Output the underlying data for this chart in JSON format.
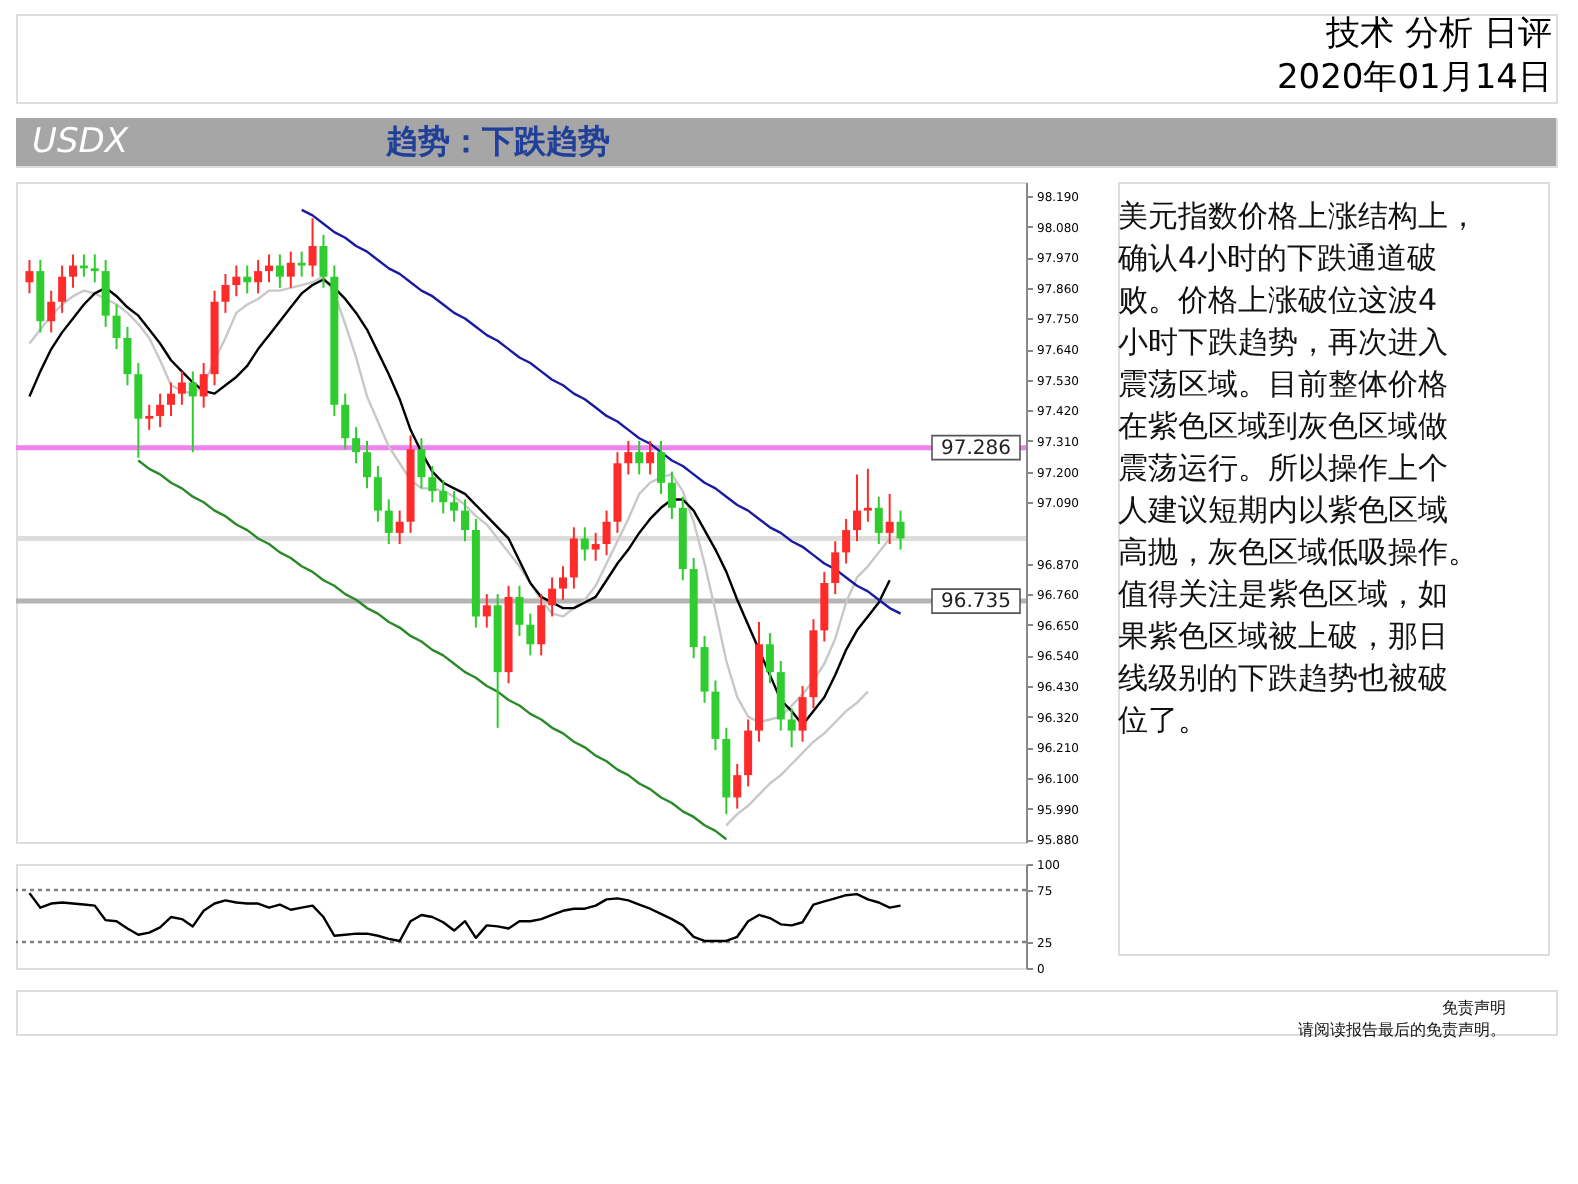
{
  "chart_data": [
    {
      "type": "candlestick",
      "annotations": [
        "技术 分析 日评",
        "2020年01月14日",
        "USDX",
        "趋势：下跌趋势",
        "美元指数价格上涨结构上，确认4小时的下跌通道破败。价格上涨破位这波4小时下跌趋势，再次进入震荡区域。目前整体价格在紫色区域到灰色区域做震荡运行。所以操作上个人建议短期内以紫色区域高抛，灰色区域低吸操作。值得关注是紫色区域，如果紫色区域被上破，那日线级别的下跌趋势也被破位了。",
        "免责声明",
        "请阅读报告最后的免责声明。"
      ],
      "categories": [
        null,
        null,
        null,
        null,
        null,
        null,
        null,
        null,
        null,
        null,
        null,
        null,
        null,
        null,
        null,
        null,
        null,
        null,
        null,
        null,
        null,
        null,
        null,
        null,
        null,
        null,
        null,
        null,
        null,
        null,
        null,
        null,
        null,
        null,
        null,
        null,
        null,
        null,
        null,
        null,
        null,
        null,
        null,
        null,
        null,
        null,
        null,
        null,
        null,
        null,
        null,
        null,
        null,
        null,
        null,
        null,
        null,
        null,
        null,
        null,
        null,
        null,
        null,
        null,
        null,
        null,
        null,
        null,
        null,
        null,
        null,
        null,
        null,
        null,
        null,
        null,
        null,
        null,
        null,
        null,
        null
      ],
      "ohlc": [
        [
          97.88,
          97.96,
          97.84,
          97.92
        ],
        [
          97.92,
          97.96,
          97.7,
          97.74
        ],
        [
          97.74,
          97.85,
          97.7,
          97.81
        ],
        [
          97.81,
          97.94,
          97.77,
          97.9
        ],
        [
          97.9,
          97.98,
          97.86,
          97.94
        ],
        [
          97.94,
          97.98,
          97.9,
          97.93
        ],
        [
          97.93,
          97.98,
          97.88,
          97.92
        ],
        [
          97.92,
          97.96,
          97.72,
          97.76
        ],
        [
          97.76,
          97.8,
          97.64,
          97.68
        ],
        [
          97.68,
          97.72,
          97.51,
          97.55
        ],
        [
          97.55,
          97.59,
          97.25,
          97.39
        ],
        [
          97.39,
          97.44,
          97.35,
          97.4
        ],
        [
          97.4,
          97.48,
          97.36,
          97.44
        ],
        [
          97.44,
          97.52,
          97.4,
          97.48
        ],
        [
          97.48,
          97.56,
          97.44,
          97.52
        ],
        [
          97.52,
          97.56,
          97.27,
          97.47
        ],
        [
          97.47,
          97.59,
          97.43,
          97.55
        ],
        [
          97.55,
          97.85,
          97.51,
          97.81
        ],
        [
          97.81,
          97.91,
          97.77,
          97.87
        ],
        [
          97.87,
          97.94,
          97.83,
          97.9
        ],
        [
          97.9,
          97.94,
          97.84,
          97.88
        ],
        [
          97.88,
          97.96,
          97.84,
          97.92
        ],
        [
          97.92,
          97.98,
          97.88,
          97.94
        ],
        [
          97.94,
          97.98,
          97.86,
          97.9
        ],
        [
          97.9,
          97.99,
          97.86,
          97.95
        ],
        [
          97.95,
          97.99,
          97.9,
          97.94
        ],
        [
          97.94,
          98.11,
          97.9,
          98.01
        ],
        [
          98.01,
          98.05,
          97.86,
          97.9
        ],
        [
          97.9,
          97.94,
          97.4,
          97.44
        ],
        [
          97.44,
          97.48,
          97.28,
          97.32
        ],
        [
          97.32,
          97.36,
          97.23,
          97.27
        ],
        [
          97.27,
          97.31,
          97.14,
          97.18
        ],
        [
          97.18,
          97.22,
          97.02,
          97.06
        ],
        [
          97.06,
          97.1,
          96.94,
          96.98
        ],
        [
          96.98,
          97.06,
          96.94,
          97.02
        ],
        [
          97.02,
          97.33,
          96.98,
          97.28
        ],
        [
          97.28,
          97.32,
          97.14,
          97.18
        ],
        [
          97.18,
          97.22,
          97.09,
          97.13
        ],
        [
          97.13,
          97.17,
          97.05,
          97.09
        ],
        [
          97.09,
          97.13,
          97.02,
          97.06
        ],
        [
          97.06,
          97.1,
          96.95,
          96.99
        ],
        [
          96.99,
          97.03,
          96.64,
          96.68
        ],
        [
          96.68,
          96.76,
          96.64,
          96.72
        ],
        [
          96.72,
          96.76,
          96.28,
          96.48
        ],
        [
          96.48,
          96.79,
          96.44,
          96.75
        ],
        [
          96.75,
          96.79,
          96.61,
          96.65
        ],
        [
          96.65,
          96.69,
          96.54,
          96.58
        ],
        [
          96.58,
          96.76,
          96.54,
          96.72
        ],
        [
          96.72,
          96.82,
          96.68,
          96.78
        ],
        [
          96.78,
          96.86,
          96.74,
          96.82
        ],
        [
          96.82,
          97.0,
          96.78,
          96.96
        ],
        [
          96.96,
          97.0,
          96.88,
          96.92
        ],
        [
          96.92,
          96.98,
          96.88,
          96.94
        ],
        [
          96.94,
          97.06,
          96.9,
          97.02
        ],
        [
          97.02,
          97.27,
          96.98,
          97.23
        ],
        [
          97.23,
          97.31,
          97.19,
          97.27
        ],
        [
          97.27,
          97.31,
          97.19,
          97.23
        ],
        [
          97.23,
          97.31,
          97.19,
          97.27
        ],
        [
          97.27,
          97.31,
          97.12,
          97.16
        ],
        [
          97.16,
          97.2,
          97.03,
          97.07
        ],
        [
          97.07,
          97.11,
          96.81,
          96.85
        ],
        [
          96.85,
          96.89,
          96.53,
          96.57
        ],
        [
          96.57,
          96.61,
          96.37,
          96.41
        ],
        [
          96.41,
          96.45,
          96.2,
          96.24
        ],
        [
          96.24,
          96.28,
          95.97,
          96.03
        ],
        [
          96.03,
          96.15,
          95.99,
          96.11
        ],
        [
          96.11,
          96.31,
          96.07,
          96.27
        ],
        [
          96.27,
          96.66,
          96.23,
          96.58
        ],
        [
          96.58,
          96.62,
          96.44,
          96.48
        ],
        [
          96.48,
          96.52,
          96.27,
          96.31
        ],
        [
          96.31,
          96.35,
          96.21,
          96.27
        ],
        [
          96.27,
          96.43,
          96.23,
          96.39
        ],
        [
          96.39,
          96.67,
          96.35,
          96.63
        ],
        [
          96.63,
          96.84,
          96.59,
          96.8
        ],
        [
          96.8,
          96.95,
          96.76,
          96.91
        ],
        [
          96.91,
          97.03,
          96.87,
          96.99
        ],
        [
          96.99,
          97.19,
          96.95,
          97.06
        ],
        [
          97.06,
          97.21,
          97.02,
          97.07
        ],
        [
          97.07,
          97.11,
          96.94,
          96.98
        ],
        [
          96.98,
          97.12,
          96.94,
          97.02
        ],
        [
          97.02,
          97.06,
          96.92,
          96.96
        ]
      ],
      "colors": [
        "#ff2a2a",
        "#2ecc2e",
        "#ff2a2a",
        "#ff2a2a",
        "#ff2a2a",
        "#2ecc2e",
        "#2ecc2e",
        "#2ecc2e",
        "#2ecc2e",
        "#2ecc2e",
        "#2ecc2e",
        "#ff2a2a",
        "#ff2a2a",
        "#ff2a2a",
        "#ff2a2a",
        "#2ecc2e",
        "#ff2a2a",
        "#ff2a2a",
        "#ff2a2a",
        "#ff2a2a",
        "#2ecc2e",
        "#ff2a2a",
        "#ff2a2a",
        "#2ecc2e",
        "#ff2a2a",
        "#2ecc2e",
        "#ff2a2a",
        "#2ecc2e",
        "#2ecc2e",
        "#2ecc2e",
        "#2ecc2e",
        "#2ecc2e",
        "#2ecc2e",
        "#2ecc2e",
        "#ff2a2a",
        "#ff2a2a",
        "#2ecc2e",
        "#2ecc2e",
        "#2ecc2e",
        "#2ecc2e",
        "#2ecc2e",
        "#2ecc2e",
        "#ff2a2a",
        "#2ecc2e",
        "#ff2a2a",
        "#2ecc2e",
        "#2ecc2e",
        "#ff2a2a",
        "#ff2a2a",
        "#ff2a2a",
        "#ff2a2a",
        "#2ecc2e",
        "#ff2a2a",
        "#ff2a2a",
        "#ff2a2a",
        "#ff2a2a",
        "#2ecc2e",
        "#ff2a2a",
        "#2ecc2e",
        "#2ecc2e",
        "#2ecc2e",
        "#2ecc2e",
        "#2ecc2e",
        "#2ecc2e",
        "#2ecc2e",
        "#ff2a2a",
        "#ff2a2a",
        "#ff2a2a",
        "#2ecc2e",
        "#2ecc2e",
        "#2ecc2e",
        "#ff2a2a",
        "#ff2a2a",
        "#ff2a2a",
        "#ff2a2a",
        "#ff2a2a",
        "#ff2a2a",
        "#ff2a2a",
        "#2ecc2e",
        "#ff2a2a",
        "#2ecc2e"
      ],
      "series": [
        {
          "type": "line",
          "color": "#c8c8c8",
          "values": [
            97.66,
            97.71,
            97.76,
            97.8,
            97.83,
            97.85,
            97.84,
            97.82,
            97.8,
            97.77,
            97.73,
            97.68,
            97.6,
            97.51,
            97.49,
            97.48,
            97.51,
            97.6,
            97.68,
            97.77,
            97.8,
            97.82,
            97.85,
            97.85,
            97.86,
            97.87,
            97.88,
            97.9,
            97.84,
            97.73,
            97.61,
            97.47,
            97.38,
            97.29,
            97.23,
            97.17,
            97.14,
            97.14,
            97.13,
            97.11,
            97.08,
            97.04,
            97.01,
            96.96,
            96.91,
            96.86,
            96.8,
            96.74,
            96.69,
            96.68,
            96.71,
            96.74,
            96.79,
            96.87,
            96.95,
            97.03,
            97.12,
            97.16,
            97.18,
            97.19,
            97.13,
            97.02,
            96.87,
            96.7,
            96.52,
            96.39,
            96.32,
            96.3,
            96.31,
            96.32,
            96.36,
            96.4,
            96.45,
            96.51,
            96.6,
            96.73,
            96.82,
            96.86,
            96.91,
            96.96,
            null
          ]
        },
        {
          "type": "line",
          "color": "#000000",
          "values": [
            97.47,
            97.56,
            97.64,
            97.7,
            97.75,
            97.8,
            97.84,
            97.86,
            97.83,
            97.79,
            97.76,
            97.71,
            97.66,
            97.6,
            97.56,
            97.52,
            97.49,
            97.48,
            97.51,
            97.54,
            97.58,
            97.64,
            97.69,
            97.74,
            97.79,
            97.84,
            97.87,
            97.89,
            97.86,
            97.82,
            97.77,
            97.71,
            97.63,
            97.55,
            97.46,
            97.35,
            97.27,
            97.2,
            97.16,
            97.14,
            97.12,
            97.08,
            97.04,
            97.0,
            96.96,
            96.88,
            96.8,
            96.75,
            96.73,
            96.71,
            96.71,
            96.73,
            96.75,
            96.81,
            96.87,
            96.92,
            96.98,
            97.03,
            97.07,
            97.1,
            97.1,
            97.06,
            96.99,
            96.92,
            96.84,
            96.74,
            96.65,
            96.56,
            96.47,
            96.38,
            96.34,
            96.29,
            96.34,
            96.39,
            96.47,
            96.56,
            96.63,
            96.68,
            96.73,
            96.81,
            null
          ]
        },
        {
          "type": "line",
          "color": "#1a1aa0",
          "values": [
            null,
            null,
            null,
            null,
            null,
            null,
            null,
            null,
            null,
            null,
            null,
            null,
            null,
            null,
            null,
            null,
            null,
            null,
            null,
            null,
            null,
            null,
            null,
            null,
            null,
            98.14,
            98.12,
            98.09,
            98.06,
            98.04,
            98.01,
            97.99,
            97.96,
            97.93,
            97.91,
            97.88,
            97.85,
            97.83,
            97.8,
            97.77,
            97.75,
            97.72,
            97.69,
            97.67,
            97.64,
            97.61,
            97.59,
            97.56,
            97.53,
            97.51,
            97.48,
            97.46,
            97.43,
            97.4,
            97.38,
            97.35,
            97.32,
            97.3,
            97.27,
            97.24,
            97.22,
            97.19,
            97.16,
            97.14,
            97.11,
            97.08,
            97.06,
            97.03,
            97.0,
            96.98,
            96.95,
            96.93,
            96.9,
            96.87,
            96.85,
            96.82,
            96.79,
            96.77,
            96.74,
            96.71,
            96.69
          ]
        },
        {
          "type": "line",
          "color": "#2a8a2a",
          "values": [
            null,
            null,
            null,
            null,
            null,
            null,
            null,
            null,
            null,
            null,
            97.24,
            97.21,
            97.19,
            97.16,
            97.14,
            97.11,
            97.09,
            97.06,
            97.04,
            97.01,
            96.99,
            96.96,
            96.94,
            96.91,
            96.89,
            96.86,
            96.84,
            96.81,
            96.79,
            96.76,
            96.74,
            96.71,
            96.69,
            96.66,
            96.64,
            96.61,
            96.59,
            96.56,
            96.54,
            96.51,
            96.48,
            96.46,
            96.43,
            96.41,
            96.38,
            96.36,
            96.33,
            96.31,
            96.28,
            96.26,
            96.23,
            96.21,
            96.18,
            96.16,
            96.13,
            96.11,
            96.08,
            96.06,
            96.03,
            96.01,
            95.98,
            95.96,
            95.93,
            95.91,
            95.88,
            null,
            null,
            null,
            null,
            null,
            null,
            null,
            null,
            null,
            null,
            null,
            null,
            null,
            null,
            null,
            null
          ]
        },
        {
          "type": "line",
          "color": "#c8c8c8",
          "values": [
            null,
            null,
            null,
            null,
            null,
            null,
            null,
            null,
            null,
            null,
            null,
            null,
            null,
            null,
            null,
            null,
            null,
            null,
            null,
            null,
            null,
            null,
            null,
            null,
            null,
            null,
            null,
            null,
            null,
            null,
            null,
            null,
            null,
            null,
            null,
            null,
            null,
            null,
            null,
            null,
            null,
            null,
            null,
            null,
            null,
            null,
            null,
            null,
            null,
            null,
            null,
            null,
            null,
            null,
            null,
            null,
            null,
            null,
            null,
            null,
            null,
            null,
            null,
            null,
            95.93,
            95.97,
            96.0,
            96.04,
            96.08,
            96.11,
            96.15,
            96.19,
            96.23,
            96.26,
            96.3,
            96.34,
            96.37,
            96.41,
            null,
            null,
            null
          ]
        }
      ],
      "ref_lines": [
        {
          "axis": "y",
          "value": 96.96,
          "label": null,
          "color": "#dddddd",
          "line_style": "solid"
        },
        {
          "axis": "y",
          "value": 97.286,
          "label": "97.286",
          "color": "#ee82ee",
          "line_style": "solid"
        },
        {
          "axis": "y",
          "value": 96.735,
          "label": "96.735",
          "color": "#b4b4b4",
          "line_style": "solid"
        }
      ],
      "ylim": [
        95.87,
        98.24
      ],
      "yticks": [
        {
          "value": 98.19,
          "label": "98.190"
        },
        {
          "value": 98.08,
          "label": "98.080"
        },
        {
          "value": 97.97,
          "label": "97.970"
        },
        {
          "value": 97.86,
          "label": "97.860"
        },
        {
          "value": 97.75,
          "label": "97.750"
        },
        {
          "value": 97.64,
          "label": "97.640"
        },
        {
          "value": 97.53,
          "label": "97.530"
        },
        {
          "value": 97.42,
          "label": "97.420"
        },
        {
          "value": 97.31,
          "label": "97.310"
        },
        {
          "value": 97.2,
          "label": "97.200"
        },
        {
          "value": 97.09,
          "label": "97.090"
        },
        {
          "value": 96.87,
          "label": "96.870"
        },
        {
          "value": 96.76,
          "label": "96.760"
        },
        {
          "value": 96.65,
          "label": "96.650"
        },
        {
          "value": 96.54,
          "label": "96.540"
        },
        {
          "value": 96.43,
          "label": "96.430"
        },
        {
          "value": 96.32,
          "label": "96.320"
        },
        {
          "value": 96.21,
          "label": "96.210"
        },
        {
          "value": 96.1,
          "label": "96.100"
        },
        {
          "value": 95.99,
          "label": "95.990"
        },
        {
          "value": 95.88,
          "label": "95.880"
        }
      ],
      "tick_labels": "y"
    },
    {
      "type": "line",
      "categories": [
        null,
        null,
        null,
        null,
        null,
        null,
        null,
        null,
        null,
        null,
        null,
        null,
        null,
        null,
        null,
        null,
        null,
        null,
        null,
        null,
        null,
        null,
        null,
        null,
        null,
        null,
        null,
        null,
        null,
        null,
        null,
        null,
        null,
        null,
        null,
        null,
        null,
        null,
        null,
        null,
        null,
        null,
        null,
        null,
        null,
        null,
        null,
        null,
        null,
        null,
        null,
        null,
        null,
        null,
        null,
        null,
        null,
        null,
        null,
        null,
        null,
        null,
        null,
        null,
        null,
        null,
        null,
        null,
        null,
        null,
        null,
        null,
        null,
        null,
        null,
        null,
        null,
        null,
        null,
        null,
        null
      ],
      "series": [
        {
          "color": "#000000",
          "values": [
            72,
            58,
            62,
            63,
            62,
            61,
            60,
            46,
            45,
            38,
            32,
            34,
            39,
            49,
            47,
            40,
            55,
            62,
            65,
            63,
            62,
            62,
            58,
            61,
            56,
            58,
            60,
            49,
            31,
            32,
            33,
            33,
            31,
            28,
            26,
            45,
            51,
            49,
            44,
            36,
            45,
            29,
            41,
            40,
            38,
            45,
            45,
            47,
            51,
            55,
            57,
            57,
            60,
            66,
            67,
            65,
            61,
            57,
            52,
            47,
            41,
            30,
            26,
            26,
            26,
            30,
            45,
            51,
            48,
            42,
            41,
            44,
            61,
            64,
            67,
            70,
            71,
            66,
            63,
            58,
            60
          ]
        }
      ],
      "ref_lines": [
        {
          "axis": "y",
          "value": 75,
          "label": null,
          "color": "#808080",
          "line_style": "dotted"
        },
        {
          "axis": "y",
          "value": 25,
          "label": null,
          "color": "#808080",
          "line_style": "dotted"
        }
      ],
      "ylim": [
        0,
        100
      ],
      "yticks": [
        0,
        25,
        75,
        100
      ],
      "tick_labels": "y"
    }
  ]
}
